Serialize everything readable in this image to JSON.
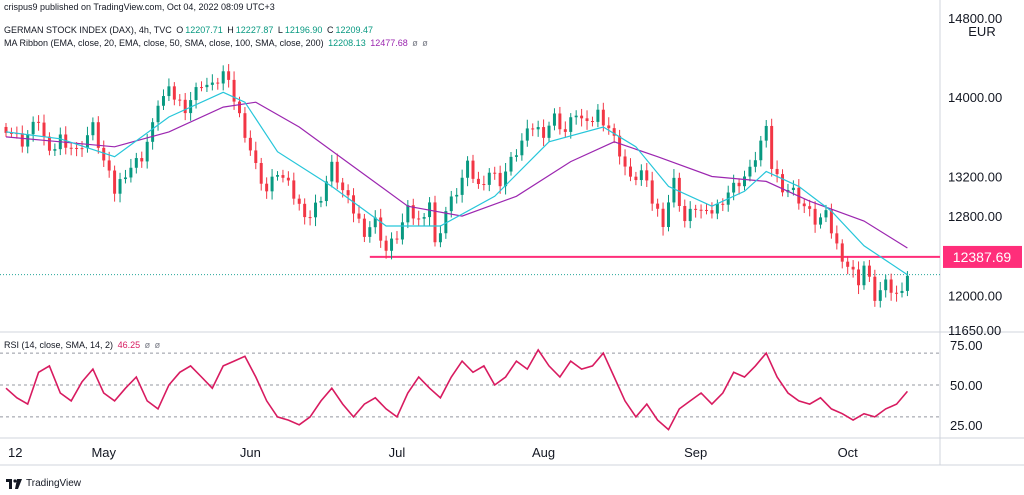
{
  "header": {
    "publisher_line": "crispus9 published on TradingView.com, Oct 04, 2022 08:09 UTC+3",
    "instrument": "GERMAN STOCK INDEX (DAX), 4h, TVC",
    "ohlc": {
      "O": "12207.71",
      "H": "12227.87",
      "L": "12196.90",
      "C": "12209.47"
    },
    "ma_ribbon_label": "MA Ribbon (EMA, close, 20, EMA, close, 50, SMA, close, 100, SMA, close, 200)",
    "ma_values": [
      "12208.13",
      "12477.68"
    ],
    "na_marks": [
      "ø",
      "ø"
    ],
    "currency": "EUR",
    "rsi_label": "RSI (14, close, SMA, 14, 2)",
    "rsi_value": "46.25",
    "rsi_na": [
      "ø",
      "ø"
    ]
  },
  "footer": {
    "brand": "TradingView"
  },
  "colors": {
    "up": "#089981",
    "down": "#f23645",
    "ema20": "#26c6da",
    "ema50": "#9c27b0",
    "support": "#ff2e7a",
    "rsi": "#d81b60",
    "grid": "#e0e3eb",
    "dotted": "#26a69a"
  },
  "chart_data": [
    {
      "type": "candlestick",
      "title": "GERMAN STOCK INDEX (DAX), 4h, TVC",
      "ylabel": "EUR",
      "x_ticks": [
        "12",
        "May",
        "Jun",
        "Jul",
        "Aug",
        "Sep",
        "Oct"
      ],
      "y_ticks": [
        14800,
        14000,
        13200,
        12800,
        12000,
        11650
      ],
      "ylim": [
        11650,
        14800
      ],
      "x_range": [
        "Apr 12",
        "Oct 04"
      ],
      "close_trace": [
        [
          0,
          13700
        ],
        [
          3,
          13550
        ],
        [
          6,
          13780
        ],
        [
          8,
          13400
        ],
        [
          10,
          13600
        ],
        [
          13,
          13450
        ],
        [
          16,
          13700
        ],
        [
          18,
          13350
        ],
        [
          20,
          13050
        ],
        [
          22,
          13250
        ],
        [
          25,
          13400
        ],
        [
          27,
          13700
        ],
        [
          28,
          13950
        ],
        [
          30,
          14050
        ],
        [
          33,
          13900
        ],
        [
          36,
          14150
        ],
        [
          38,
          14100
        ],
        [
          40,
          14250
        ],
        [
          42,
          13980
        ],
        [
          44,
          13650
        ],
        [
          46,
          13300
        ],
        [
          48,
          13050
        ],
        [
          50,
          13250
        ],
        [
          52,
          13100
        ],
        [
          54,
          12900
        ],
        [
          56,
          12800
        ],
        [
          58,
          13000
        ],
        [
          60,
          13300
        ],
        [
          62,
          13050
        ],
        [
          64,
          12850
        ],
        [
          66,
          12650
        ],
        [
          68,
          12750
        ],
        [
          70,
          12450
        ],
        [
          72,
          12600
        ],
        [
          74,
          12850
        ],
        [
          76,
          12750
        ],
        [
          78,
          12950
        ],
        [
          79,
          12500
        ],
        [
          81,
          12850
        ],
        [
          83,
          13050
        ],
        [
          85,
          13300
        ],
        [
          87,
          13100
        ],
        [
          89,
          13250
        ],
        [
          91,
          13150
        ],
        [
          93,
          13350
        ],
        [
          95,
          13550
        ],
        [
          97,
          13700
        ],
        [
          99,
          13650
        ],
        [
          101,
          13800
        ],
        [
          103,
          13650
        ],
        [
          105,
          13850
        ],
        [
          107,
          13700
        ],
        [
          109,
          13850
        ],
        [
          111,
          13700
        ],
        [
          113,
          13450
        ],
        [
          115,
          13150
        ],
        [
          117,
          13250
        ],
        [
          119,
          12950
        ],
        [
          121,
          12750
        ],
        [
          123,
          13150
        ],
        [
          125,
          12750
        ],
        [
          127,
          12900
        ],
        [
          129,
          12800
        ],
        [
          131,
          12900
        ],
        [
          133,
          13050
        ],
        [
          135,
          13150
        ],
        [
          137,
          13250
        ],
        [
          139,
          13550
        ],
        [
          140,
          13650
        ],
        [
          141,
          13300
        ],
        [
          143,
          13100
        ],
        [
          145,
          13050
        ],
        [
          147,
          12900
        ],
        [
          149,
          12750
        ],
        [
          151,
          12800
        ],
        [
          153,
          12500
        ],
        [
          155,
          12300
        ],
        [
          157,
          12150
        ],
        [
          158,
          12300
        ],
        [
          160,
          11980
        ],
        [
          162,
          12100
        ],
        [
          164,
          12000
        ],
        [
          166,
          12209
        ]
      ],
      "ema20_trace": [
        [
          0,
          13650
        ],
        [
          10,
          13580
        ],
        [
          20,
          13400
        ],
        [
          30,
          13800
        ],
        [
          40,
          14050
        ],
        [
          44,
          13950
        ],
        [
          50,
          13450
        ],
        [
          60,
          13100
        ],
        [
          70,
          12700
        ],
        [
          80,
          12700
        ],
        [
          90,
          13000
        ],
        [
          100,
          13550
        ],
        [
          110,
          13700
        ],
        [
          116,
          13500
        ],
        [
          122,
          13100
        ],
        [
          130,
          12900
        ],
        [
          136,
          13050
        ],
        [
          140,
          13250
        ],
        [
          146,
          13100
        ],
        [
          152,
          12850
        ],
        [
          158,
          12500
        ],
        [
          166,
          12208
        ]
      ],
      "ema50_trace": [
        [
          0,
          13600
        ],
        [
          10,
          13550
        ],
        [
          20,
          13500
        ],
        [
          30,
          13650
        ],
        [
          40,
          13900
        ],
        [
          46,
          13950
        ],
        [
          54,
          13700
        ],
        [
          64,
          13300
        ],
        [
          74,
          12900
        ],
        [
          84,
          12800
        ],
        [
          94,
          13000
        ],
        [
          104,
          13350
        ],
        [
          112,
          13550
        ],
        [
          120,
          13400
        ],
        [
          130,
          13200
        ],
        [
          140,
          13150
        ],
        [
          148,
          12950
        ],
        [
          158,
          12750
        ],
        [
          166,
          12478
        ]
      ],
      "support_level": 12387.69,
      "support_label": "12387.69",
      "last_price": 12209.47
    },
    {
      "type": "line",
      "title": "RSI (14, close, SMA, 14, 2)",
      "y_ticks": [
        75,
        50,
        25
      ],
      "ylim": [
        18,
        82
      ],
      "bands": [
        70,
        50,
        30
      ],
      "values": [
        [
          0,
          48
        ],
        [
          2,
          42
        ],
        [
          4,
          38
        ],
        [
          6,
          58
        ],
        [
          8,
          62
        ],
        [
          10,
          45
        ],
        [
          12,
          40
        ],
        [
          14,
          52
        ],
        [
          16,
          60
        ],
        [
          18,
          45
        ],
        [
          20,
          40
        ],
        [
          22,
          48
        ],
        [
          24,
          55
        ],
        [
          26,
          40
        ],
        [
          28,
          35
        ],
        [
          30,
          50
        ],
        [
          32,
          58
        ],
        [
          34,
          62
        ],
        [
          36,
          55
        ],
        [
          38,
          48
        ],
        [
          40,
          62
        ],
        [
          42,
          65
        ],
        [
          44,
          68
        ],
        [
          46,
          55
        ],
        [
          48,
          40
        ],
        [
          50,
          30
        ],
        [
          52,
          28
        ],
        [
          54,
          25
        ],
        [
          56,
          30
        ],
        [
          58,
          40
        ],
        [
          60,
          48
        ],
        [
          62,
          38
        ],
        [
          64,
          30
        ],
        [
          66,
          38
        ],
        [
          68,
          42
        ],
        [
          70,
          35
        ],
        [
          72,
          30
        ],
        [
          74,
          45
        ],
        [
          76,
          55
        ],
        [
          78,
          48
        ],
        [
          80,
          42
        ],
        [
          82,
          55
        ],
        [
          84,
          65
        ],
        [
          86,
          58
        ],
        [
          88,
          62
        ],
        [
          90,
          50
        ],
        [
          92,
          55
        ],
        [
          94,
          65
        ],
        [
          96,
          60
        ],
        [
          98,
          72
        ],
        [
          100,
          62
        ],
        [
          102,
          55
        ],
        [
          104,
          65
        ],
        [
          106,
          60
        ],
        [
          108,
          62
        ],
        [
          110,
          70
        ],
        [
          112,
          55
        ],
        [
          114,
          40
        ],
        [
          116,
          30
        ],
        [
          118,
          38
        ],
        [
          120,
          28
        ],
        [
          122,
          22
        ],
        [
          124,
          35
        ],
        [
          126,
          40
        ],
        [
          128,
          45
        ],
        [
          130,
          38
        ],
        [
          132,
          45
        ],
        [
          134,
          58
        ],
        [
          136,
          55
        ],
        [
          138,
          62
        ],
        [
          140,
          70
        ],
        [
          142,
          55
        ],
        [
          144,
          45
        ],
        [
          146,
          40
        ],
        [
          148,
          38
        ],
        [
          150,
          42
        ],
        [
          152,
          35
        ],
        [
          154,
          32
        ],
        [
          156,
          28
        ],
        [
          158,
          32
        ],
        [
          160,
          30
        ],
        [
          162,
          35
        ],
        [
          164,
          38
        ],
        [
          166,
          46
        ]
      ],
      "last_value": 46.25
    }
  ]
}
